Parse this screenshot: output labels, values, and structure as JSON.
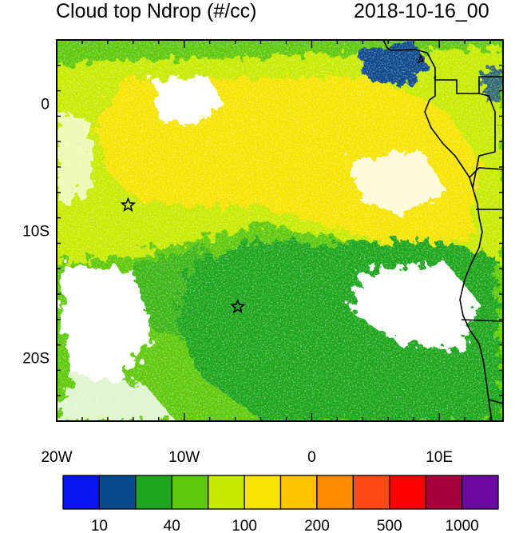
{
  "header": {
    "title": "Cloud top Ndrop (#/cc)",
    "timestamp": "2018-10-16_00"
  },
  "map": {
    "region": "Southeast Atlantic / West Africa coast",
    "lon_range": [
      -20,
      15
    ],
    "lat_range": [
      -25,
      5
    ],
    "x_ticks": [
      {
        "value": -20,
        "label": "20W"
      },
      {
        "value": -10,
        "label": "10W"
      },
      {
        "value": 0,
        "label": "0"
      },
      {
        "value": 10,
        "label": "10E"
      }
    ],
    "y_ticks": [
      {
        "value": 0,
        "label": "0"
      },
      {
        "value": -10,
        "label": "10S"
      },
      {
        "value": -20,
        "label": "20S"
      }
    ],
    "markers": [
      {
        "lon": -14.4,
        "lat": -8.0,
        "symbol": "star"
      },
      {
        "lon": -5.8,
        "lat": -16.0,
        "symbol": "star"
      }
    ],
    "dominant_colors": {
      "ocean_clear": "#ffffff",
      "yellow_band": "#f6e400",
      "yellow_green": "#c6ea00",
      "light_green": "#5fc80a",
      "green": "#1fa51f",
      "dark_blue": "#0a4a8c"
    }
  },
  "colorbar": {
    "colors": [
      "#0a14f0",
      "#0a4a8c",
      "#1fa51f",
      "#5fc80a",
      "#c6ea00",
      "#f6e400",
      "#ffc400",
      "#ff8c00",
      "#ff4a14",
      "#ff0000",
      "#a8003c",
      "#6a0aa0"
    ],
    "labels": [
      "10",
      "40",
      "100",
      "200",
      "500",
      "1000"
    ]
  }
}
